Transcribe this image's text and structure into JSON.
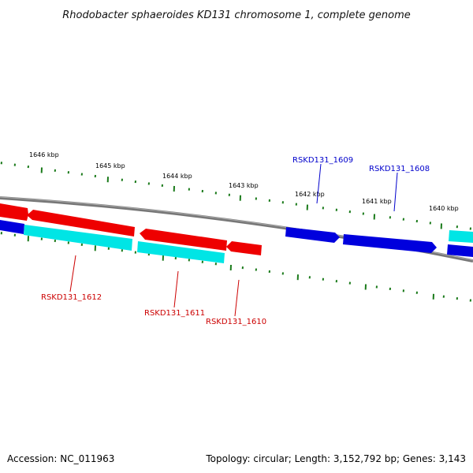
{
  "title": "Rhodobacter sphaeroides KD131 chromosome 1, complete genome",
  "footer": {
    "accession": "Accession: NC_011963",
    "summary": "Topology: circular; Length: 3,152,792 bp; Genes: 3,143"
  },
  "colors": {
    "backbone": "#808080",
    "tick": "#1a7a1a",
    "forward_cds": "#0000dd",
    "reverse_cds": "#ee0000",
    "gene": "#00e5e5",
    "forward_label": "#0000cc",
    "reverse_label": "#cc0000"
  },
  "kbp_ticks": [
    {
      "text": "1646 kbp"
    },
    {
      "text": "1645 kbp"
    },
    {
      "text": "1644 kbp"
    },
    {
      "text": "1643 kbp"
    },
    {
      "text": "1642 kbp"
    },
    {
      "text": "1641 kbp"
    },
    {
      "text": "1640 kbp"
    }
  ],
  "genes": [
    {
      "locus": "RSKD131_1609",
      "strand": "forward"
    },
    {
      "locus": "RSKD131_1608",
      "strand": "forward"
    },
    {
      "locus": "RSKD131_1612",
      "strand": "reverse"
    },
    {
      "locus": "RSKD131_1611",
      "strand": "reverse"
    },
    {
      "locus": "RSKD131_1610",
      "strand": "reverse"
    }
  ]
}
